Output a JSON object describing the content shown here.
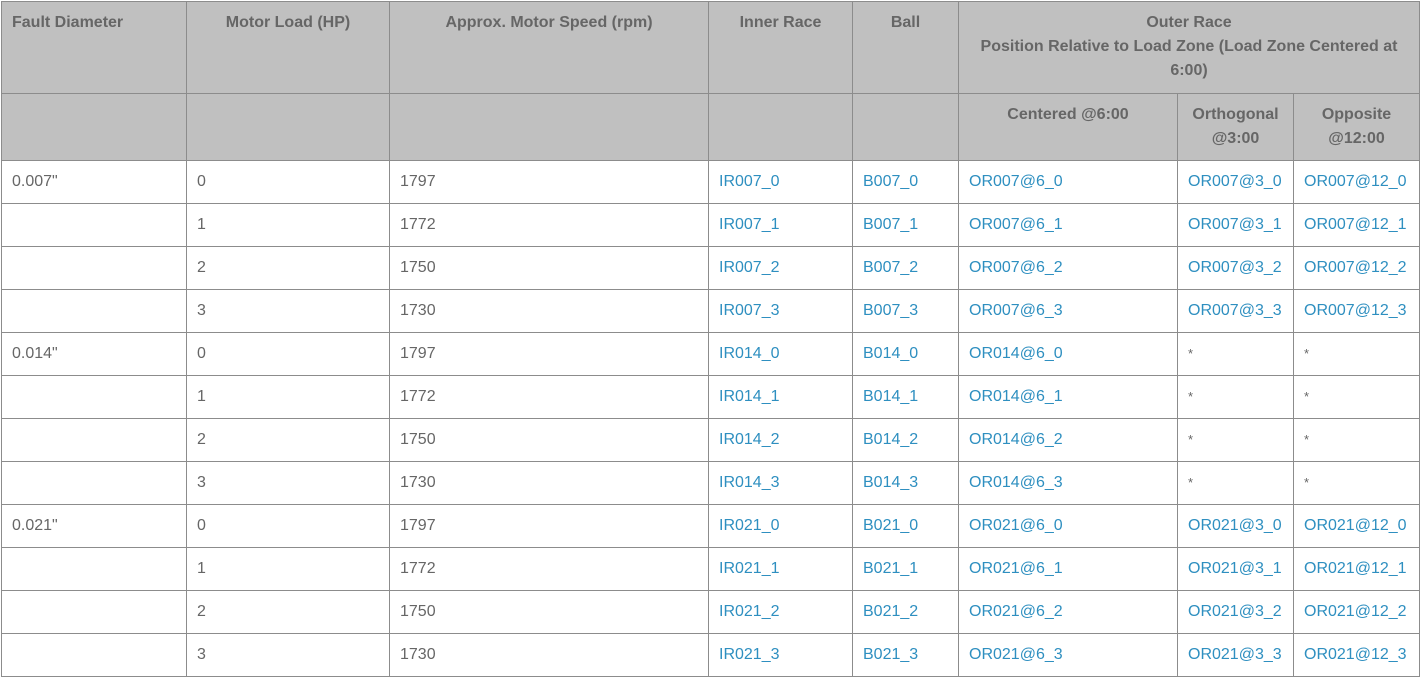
{
  "headers": {
    "fault_diameter": "Fault Diameter",
    "motor_load": "Motor Load (HP)",
    "motor_speed": "Approx. Motor Speed (rpm)",
    "inner_race": "Inner Race",
    "ball": "Ball",
    "outer_race_title": "Outer Race",
    "outer_race_subtitle": "Position Relative to Load Zone (Load Zone Centered at 6:00)",
    "centered": "Centered @6:00",
    "orthogonal": "Orthogonal @3:00",
    "opposite": "Opposite @12:00"
  },
  "rows": [
    {
      "diameter": "0.007\"",
      "load": "0",
      "speed": "1797",
      "inner": "IR007_0",
      "ball": "B007_0",
      "centered": "OR007@6_0",
      "orthogonal": "OR007@3_0",
      "opposite": "OR007@12_0"
    },
    {
      "diameter": "",
      "load": "1",
      "speed": "1772",
      "inner": "IR007_1",
      "ball": "B007_1",
      "centered": "OR007@6_1",
      "orthogonal": "OR007@3_1",
      "opposite": "OR007@12_1"
    },
    {
      "diameter": "",
      "load": "2",
      "speed": "1750",
      "inner": "IR007_2",
      "ball": "B007_2",
      "centered": "OR007@6_2",
      "orthogonal": "OR007@3_2",
      "opposite": "OR007@12_2"
    },
    {
      "diameter": "",
      "load": "3",
      "speed": "1730",
      "inner": "IR007_3",
      "ball": "B007_3",
      "centered": "OR007@6_3",
      "orthogonal": "OR007@3_3",
      "opposite": "OR007@12_3"
    },
    {
      "diameter": "0.014\"",
      "load": "0",
      "speed": "1797",
      "inner": "IR014_0",
      "ball": "B014_0",
      "centered": "OR014@6_0",
      "orthogonal": "*",
      "opposite": "*"
    },
    {
      "diameter": "",
      "load": "1",
      "speed": "1772",
      "inner": "IR014_1",
      "ball": "B014_1",
      "centered": "OR014@6_1",
      "orthogonal": "*",
      "opposite": "*"
    },
    {
      "diameter": "",
      "load": "2",
      "speed": "1750",
      "inner": "IR014_2",
      "ball": "B014_2",
      "centered": "OR014@6_2",
      "orthogonal": "*",
      "opposite": "*"
    },
    {
      "diameter": "",
      "load": "3",
      "speed": "1730",
      "inner": "IR014_3",
      "ball": "B014_3",
      "centered": "OR014@6_3",
      "orthogonal": "*",
      "opposite": "*"
    },
    {
      "diameter": "0.021\"",
      "load": "0",
      "speed": "1797",
      "inner": "IR021_0",
      "ball": "B021_0",
      "centered": "OR021@6_0",
      "orthogonal": "OR021@3_0",
      "opposite": "OR021@12_0"
    },
    {
      "diameter": "",
      "load": "1",
      "speed": "1772",
      "inner": "IR021_1",
      "ball": "B021_1",
      "centered": "OR021@6_1",
      "orthogonal": "OR021@3_1",
      "opposite": "OR021@12_1"
    },
    {
      "diameter": "",
      "load": "2",
      "speed": "1750",
      "inner": "IR021_2",
      "ball": "B021_2",
      "centered": "OR021@6_2",
      "orthogonal": "OR021@3_2",
      "opposite": "OR021@12_2"
    },
    {
      "diameter": "",
      "load": "3",
      "speed": "1730",
      "inner": "IR021_3",
      "ball": "B021_3",
      "centered": "OR021@6_3",
      "orthogonal": "OR021@3_3",
      "opposite": "OR021@12_3"
    }
  ],
  "colors": {
    "header_bg": "#c0c0c0",
    "text": "#666666",
    "link": "#2e8fc0",
    "border": "#8c8c8c"
  }
}
